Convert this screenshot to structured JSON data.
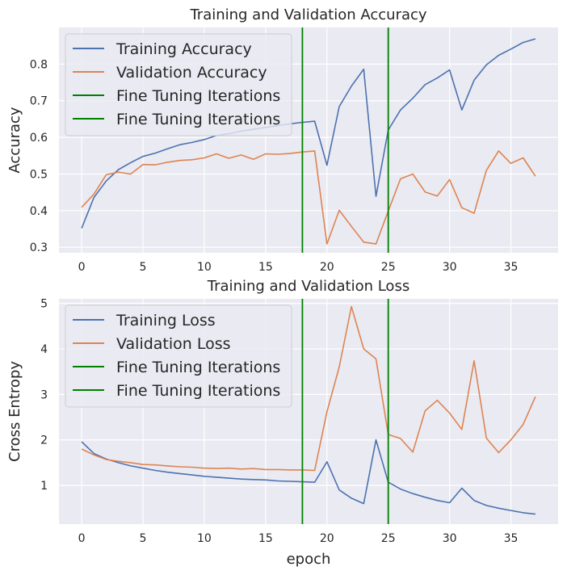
{
  "chart_data": [
    {
      "type": "line",
      "title": "Training and Validation Accuracy",
      "xlabel": "",
      "ylabel": "Accuracy",
      "xlim": [
        -1.85,
        38.85
      ],
      "ylim": [
        0.285,
        0.9
      ],
      "xticks": [
        0,
        5,
        10,
        15,
        20,
        25,
        30,
        35
      ],
      "yticks": [
        0.3,
        0.4,
        0.5,
        0.6,
        0.7,
        0.8
      ],
      "ytick_labels": [
        "0.3",
        "0.4",
        "0.5",
        "0.6",
        "0.7",
        "0.8"
      ],
      "grid": true,
      "legend_position": "top-left",
      "x": [
        0,
        1,
        2,
        3,
        4,
        5,
        6,
        7,
        8,
        9,
        10,
        11,
        12,
        13,
        14,
        15,
        16,
        17,
        18,
        19,
        20,
        21,
        22,
        23,
        24,
        25,
        26,
        27,
        28,
        29,
        30,
        31,
        32,
        33,
        34,
        35,
        36,
        37
      ],
      "series": [
        {
          "name": "Training Accuracy",
          "color": "#4c72b0",
          "values": [
            0.352,
            0.436,
            0.481,
            0.512,
            0.531,
            0.548,
            0.557,
            0.569,
            0.58,
            0.586,
            0.594,
            0.605,
            0.61,
            0.617,
            0.622,
            0.627,
            0.632,
            0.637,
            0.641,
            0.644,
            0.524,
            0.684,
            0.74,
            0.786,
            0.439,
            0.62,
            0.675,
            0.707,
            0.744,
            0.762,
            0.784,
            0.675,
            0.756,
            0.798,
            0.824,
            0.841,
            0.859,
            0.869
          ]
        },
        {
          "name": "Validation Accuracy",
          "color": "#dd8452",
          "values": [
            0.409,
            0.445,
            0.498,
            0.505,
            0.5,
            0.526,
            0.525,
            0.532,
            0.537,
            0.539,
            0.544,
            0.555,
            0.543,
            0.552,
            0.54,
            0.555,
            0.554,
            0.556,
            0.56,
            0.563,
            0.309,
            0.401,
            0.357,
            0.314,
            0.309,
            0.399,
            0.487,
            0.5,
            0.451,
            0.44,
            0.485,
            0.408,
            0.393,
            0.51,
            0.563,
            0.529,
            0.544,
            0.494
          ]
        }
      ],
      "vlines": [
        {
          "name": "Fine Tuning Iterations",
          "x": 18,
          "color": "#008000"
        },
        {
          "name": "Fine Tuning Iterations",
          "x": 25,
          "color": "#008000"
        }
      ]
    },
    {
      "type": "line",
      "title": "Training and Validation Loss",
      "xlabel": "epoch",
      "ylabel": "Cross Entropy",
      "xlim": [
        -1.85,
        38.85
      ],
      "ylim": [
        0.15,
        5.1
      ],
      "xticks": [
        0,
        5,
        10,
        15,
        20,
        25,
        30,
        35
      ],
      "yticks": [
        1,
        2,
        3,
        4,
        5
      ],
      "ytick_labels": [
        "1",
        "2",
        "3",
        "4",
        "5"
      ],
      "grid": true,
      "legend_position": "top-left",
      "x": [
        0,
        1,
        2,
        3,
        4,
        5,
        6,
        7,
        8,
        9,
        10,
        11,
        12,
        13,
        14,
        15,
        16,
        17,
        18,
        19,
        20,
        21,
        22,
        23,
        24,
        25,
        26,
        27,
        28,
        29,
        30,
        31,
        32,
        33,
        34,
        35,
        36,
        37
      ],
      "series": [
        {
          "name": "Training Loss",
          "color": "#4c72b0",
          "values": [
            1.96,
            1.7,
            1.58,
            1.5,
            1.43,
            1.38,
            1.33,
            1.29,
            1.26,
            1.23,
            1.2,
            1.18,
            1.16,
            1.14,
            1.13,
            1.12,
            1.1,
            1.09,
            1.08,
            1.07,
            1.52,
            0.9,
            0.72,
            0.6,
            2.0,
            1.07,
            0.92,
            0.82,
            0.74,
            0.67,
            0.62,
            0.94,
            0.67,
            0.56,
            0.5,
            0.45,
            0.4,
            0.37
          ]
        },
        {
          "name": "Validation Loss",
          "color": "#dd8452",
          "values": [
            1.8,
            1.67,
            1.57,
            1.53,
            1.5,
            1.46,
            1.45,
            1.43,
            1.41,
            1.4,
            1.38,
            1.37,
            1.38,
            1.36,
            1.37,
            1.35,
            1.35,
            1.34,
            1.34,
            1.33,
            2.62,
            3.6,
            4.93,
            4.0,
            3.78,
            2.12,
            2.03,
            1.73,
            2.64,
            2.87,
            2.59,
            2.23,
            3.74,
            2.04,
            1.72,
            2.0,
            2.34,
            2.95
          ]
        }
      ],
      "vlines": [
        {
          "name": "Fine Tuning Iterations",
          "x": 18,
          "color": "#008000"
        },
        {
          "name": "Fine Tuning Iterations",
          "x": 25,
          "color": "#008000"
        }
      ]
    }
  ]
}
